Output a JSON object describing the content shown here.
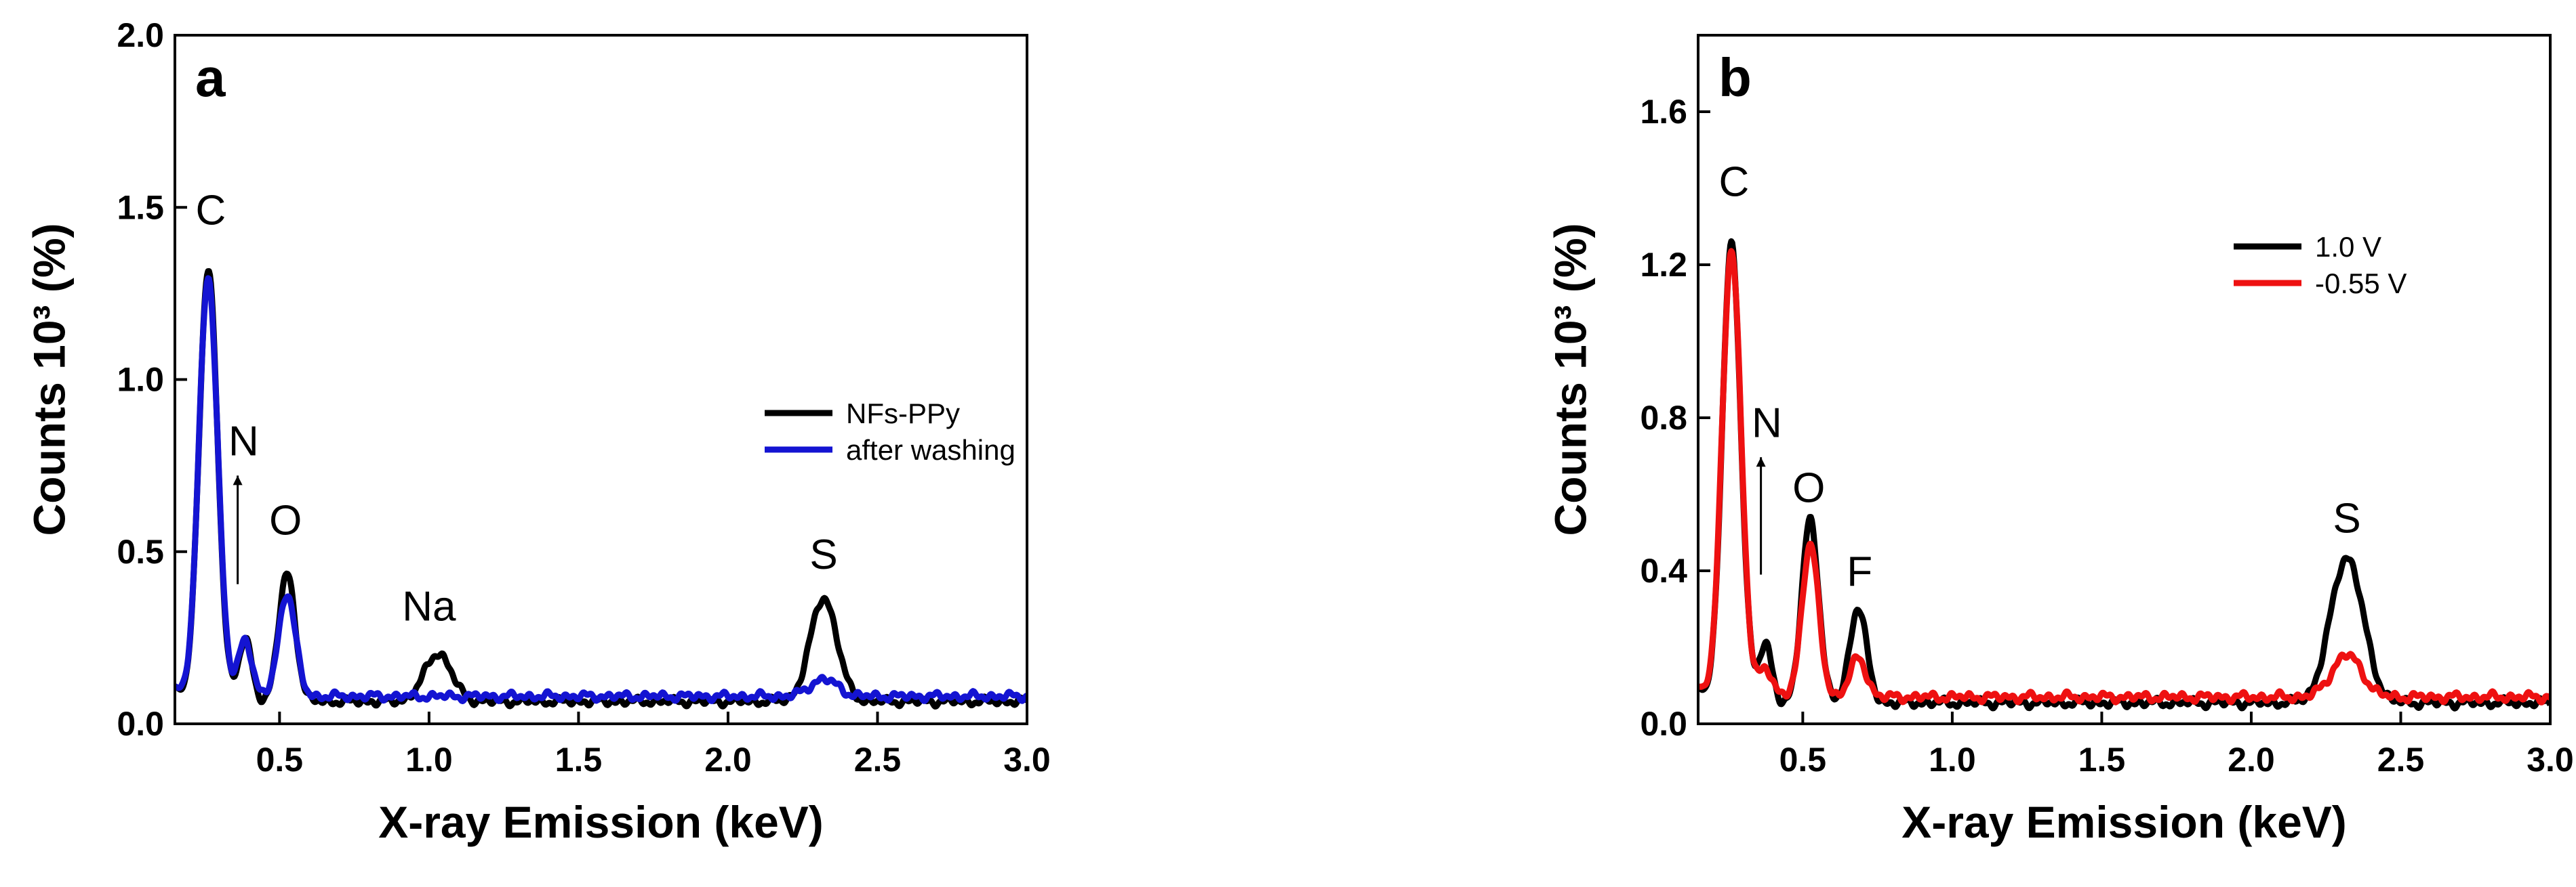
{
  "chart_data": [
    {
      "type": "line",
      "panel": "a",
      "xlabel": "X-ray Emission (keV)",
      "ylabel": "Counts 10³ (%)",
      "xlim": [
        0.15,
        3.0
      ],
      "ylim": [
        0.0,
        2.0
      ],
      "xticks": [
        0.5,
        1.0,
        1.5,
        2.0,
        2.5,
        3.0
      ],
      "xtick_labels": [
        "0.5",
        "1.0",
        "1.5",
        "2.0",
        "2.5",
        "3.0"
      ],
      "yticks": [
        0.0,
        0.5,
        1.0,
        1.5,
        2.0
      ],
      "ytick_labels": [
        "0.0",
        "0.5",
        "1.0",
        "1.5",
        "2.0"
      ],
      "legend_position": "center-right",
      "peak_labels": [
        {
          "text": "C",
          "x": 0.27,
          "y": 1.45
        },
        {
          "text": "N",
          "x": 0.38,
          "y": 0.78,
          "arrow": true
        },
        {
          "text": "O",
          "x": 0.52,
          "y": 0.55
        },
        {
          "text": "Na",
          "x": 1.0,
          "y": 0.3
        },
        {
          "text": "S",
          "x": 2.32,
          "y": 0.45
        }
      ],
      "series": [
        {
          "name": "NFs-PPy",
          "color": "#000000",
          "baseline": 0.065,
          "start": 0.11,
          "peaks": [
            {
              "c": 0.26,
              "a": 1.33,
              "w": 0.032
            },
            {
              "c": 0.385,
              "a": 0.18,
              "w": 0.022
            },
            {
              "c": 0.525,
              "a": 0.37,
              "w": 0.028
            },
            {
              "c": 1.03,
              "a": 0.14,
              "w": 0.045
            },
            {
              "c": 2.32,
              "a": 0.3,
              "w": 0.045
            }
          ]
        },
        {
          "name": "after washing",
          "color": "#1414d2",
          "baseline": 0.08,
          "start": 0.11,
          "peaks": [
            {
              "c": 0.26,
              "a": 1.3,
              "w": 0.032
            },
            {
              "c": 0.385,
              "a": 0.17,
              "w": 0.022
            },
            {
              "c": 0.525,
              "a": 0.3,
              "w": 0.028
            },
            {
              "c": 2.32,
              "a": 0.05,
              "w": 0.045
            }
          ]
        }
      ]
    },
    {
      "type": "line",
      "panel": "b",
      "xlabel": "X-ray Emission (keV)",
      "ylabel": "Counts 10³ (%)",
      "xlim": [
        0.15,
        3.0
      ],
      "ylim": [
        0.0,
        1.8
      ],
      "xticks": [
        0.5,
        1.0,
        1.5,
        2.0,
        2.5,
        3.0
      ],
      "xtick_labels": [
        "0.5",
        "1.0",
        "1.5",
        "2.0",
        "2.5",
        "3.0"
      ],
      "yticks": [
        0.0,
        0.4,
        0.8,
        1.2,
        1.6
      ],
      "ytick_labels": [
        "0.0",
        "0.4",
        "0.8",
        "1.2",
        "1.6"
      ],
      "legend_position": "top-right",
      "peak_labels": [
        {
          "text": "C",
          "x": 0.27,
          "y": 1.38
        },
        {
          "text": "N",
          "x": 0.38,
          "y": 0.75,
          "arrow": true
        },
        {
          "text": "O",
          "x": 0.52,
          "y": 0.58
        },
        {
          "text": "F",
          "x": 0.69,
          "y": 0.36
        },
        {
          "text": "S",
          "x": 2.32,
          "y": 0.5
        }
      ],
      "series": [
        {
          "name": "1.0 V",
          "color": "#000000",
          "baseline": 0.055,
          "start": 0.1,
          "peaks": [
            {
              "c": 0.26,
              "a": 1.27,
              "w": 0.032
            },
            {
              "c": 0.375,
              "a": 0.15,
              "w": 0.022
            },
            {
              "c": 0.525,
              "a": 0.48,
              "w": 0.028
            },
            {
              "c": 0.685,
              "a": 0.25,
              "w": 0.028
            },
            {
              "c": 2.32,
              "a": 0.38,
              "w": 0.055
            }
          ]
        },
        {
          "name": "-0.55 V",
          "color": "#ee1111",
          "baseline": 0.07,
          "start": 0.1,
          "peaks": [
            {
              "c": 0.26,
              "a": 1.25,
              "w": 0.032
            },
            {
              "c": 0.375,
              "a": 0.08,
              "w": 0.022
            },
            {
              "c": 0.525,
              "a": 0.4,
              "w": 0.028
            },
            {
              "c": 0.685,
              "a": 0.1,
              "w": 0.028
            },
            {
              "c": 2.32,
              "a": 0.11,
              "w": 0.05
            }
          ]
        }
      ]
    }
  ]
}
